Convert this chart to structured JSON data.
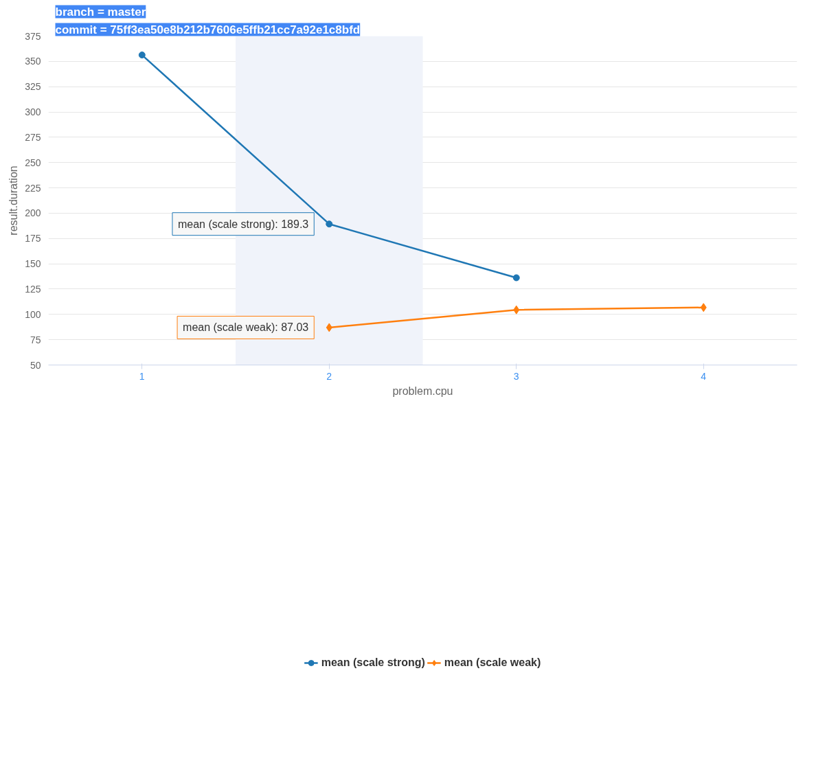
{
  "chart_data": {
    "type": "line",
    "title": "branch = master",
    "subtitle": "commit = 75ff3ea50e8b212b7606e5ffb21cc7a92e1c8bfd",
    "xlabel": "problem.cpu",
    "ylabel": "result.duration",
    "xlim": [
      0.5,
      4.5
    ],
    "xticks": [
      1,
      2,
      3,
      4
    ],
    "ylim": [
      50,
      375
    ],
    "yticks": [
      50,
      75,
      100,
      125,
      150,
      175,
      200,
      225,
      250,
      275,
      300,
      325,
      350,
      375
    ],
    "grid": "y",
    "legend": "bottom",
    "series": [
      {
        "name": "mean (scale strong)",
        "color": "#1f77b4",
        "marker": "circle",
        "x": [
          1,
          2,
          3
        ],
        "values": [
          356.3,
          189.3,
          136.2
        ]
      },
      {
        "name": "mean (scale weak)",
        "color": "#ff7f0e",
        "marker": "diamond",
        "x": [
          2,
          3,
          4
        ],
        "values": [
          87.03,
          104.5,
          106.8
        ]
      }
    ],
    "bands": [
      {
        "axis": "x",
        "from": 1.5,
        "to": 2.5,
        "color": "#f0f3fa"
      }
    ],
    "annotations": [
      {
        "text": "mean (scale strong): 189.3",
        "x": 2,
        "y": 189.3
      },
      {
        "text": "mean (scale weak): 87.03",
        "x": 2,
        "y": 87.03
      }
    ]
  }
}
